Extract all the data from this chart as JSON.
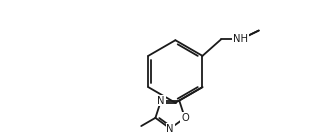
{
  "bg_color": "#ffffff",
  "line_color": "#1a1a1a",
  "line_width": 1.3,
  "font_size": 7.2,
  "fig_width": 3.18,
  "fig_height": 1.4,
  "dpi": 100,
  "xlim": [
    0.3,
    9.0
  ],
  "ylim": [
    0.5,
    5.2
  ]
}
